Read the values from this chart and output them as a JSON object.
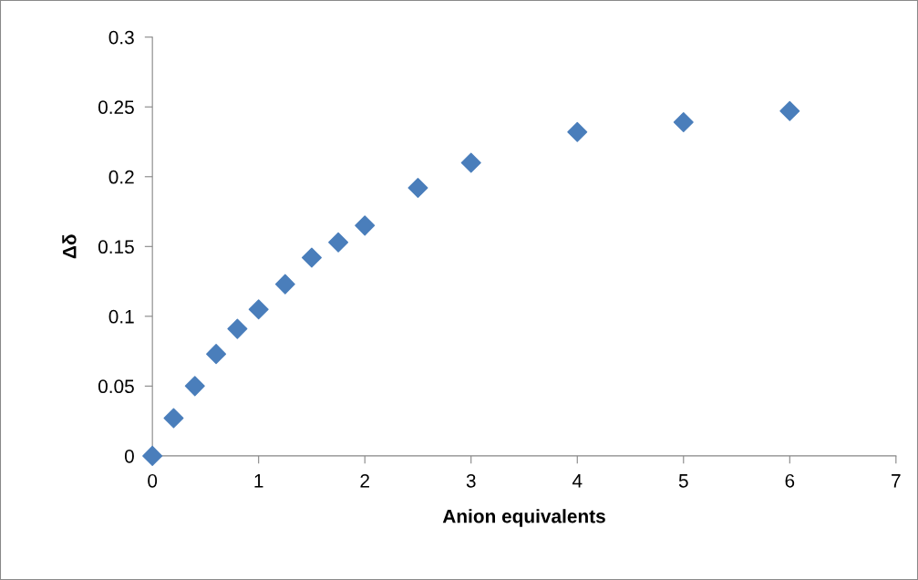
{
  "chart_data": {
    "type": "scatter",
    "xlabel": "Anion equivalents",
    "ylabel": "Δδ",
    "x": [
      0,
      0.2,
      0.4,
      0.6,
      0.8,
      1,
      1.25,
      1.5,
      1.75,
      2,
      2.5,
      3,
      4,
      5,
      6
    ],
    "values": [
      0,
      0.027,
      0.05,
      0.073,
      0.091,
      0.105,
      0.123,
      0.142,
      0.153,
      0.165,
      0.192,
      0.21,
      0.232,
      0.239,
      0.247
    ],
    "color": "#4a7ebb",
    "marker": "diamond",
    "xlim": [
      0,
      7
    ],
    "xticks": [
      0,
      1,
      2,
      3,
      4,
      5,
      6,
      7
    ],
    "ylim": [
      0,
      0.3
    ],
    "yticks": [
      0,
      0.05,
      0.1,
      0.15,
      0.2,
      0.25,
      0.3
    ],
    "grid": false,
    "legend": false
  }
}
